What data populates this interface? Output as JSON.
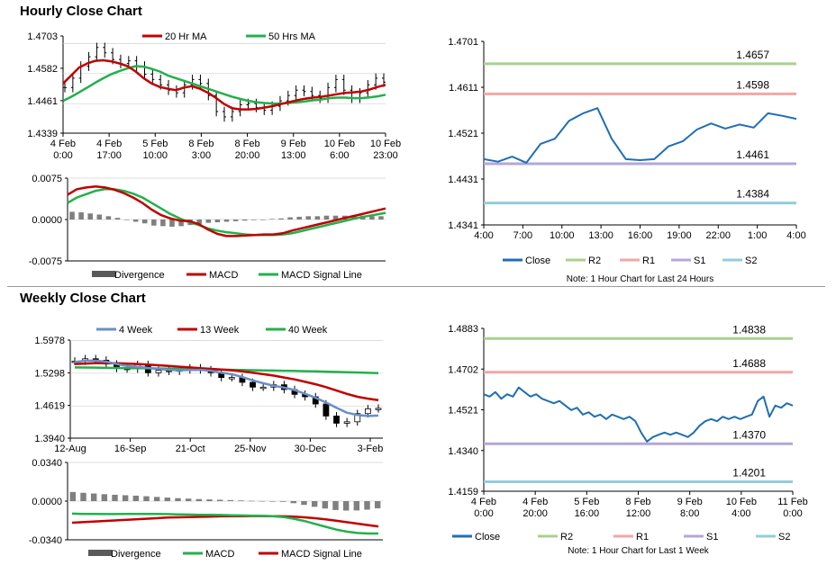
{
  "sections": {
    "hourly_title": "Hourly Close Chart",
    "weekly_title": "Weekly Close Chart"
  },
  "colors": {
    "price": "#000000",
    "ma_short": "#c00000",
    "ma_long": "#22b14c",
    "ma_4week": "#6a8fc8",
    "close": "#1f6fb3",
    "r2": "#a9d18e",
    "r1": "#f4a6a6",
    "s1": "#b4a7d6",
    "s2": "#92cddc",
    "divergence": "#7f7f7f"
  },
  "chart_data": [
    {
      "id": "hourly_price",
      "type": "line",
      "legend": [
        "20 Hr MA",
        "50 Hrs MA"
      ],
      "yticks": [
        "1.4703",
        "1.4582",
        "1.4461",
        "1.4339"
      ],
      "ylim": [
        1.4339,
        1.4703
      ],
      "xticks": [
        [
          "4 Feb",
          "0:00"
        ],
        [
          "4 Feb",
          "17:00"
        ],
        [
          "5 Feb",
          "10:00"
        ],
        [
          "8 Feb",
          "3:00"
        ],
        [
          "8 Feb",
          "20:00"
        ],
        [
          "9 Feb",
          "13:00"
        ],
        [
          "10 Feb",
          "6:00"
        ],
        [
          "10 Feb",
          "23:00"
        ]
      ],
      "price": [
        1.451,
        1.4545,
        1.459,
        1.4625,
        1.466,
        1.464,
        1.4615,
        1.46,
        1.461,
        1.459,
        1.456,
        1.454,
        1.452,
        1.45,
        1.449,
        1.452,
        1.454,
        1.4525,
        1.448,
        1.442,
        1.44,
        1.442,
        1.4445,
        1.445,
        1.4435,
        1.4425,
        1.444,
        1.446,
        1.448,
        1.45,
        1.4495,
        1.448,
        1.447,
        1.451,
        1.454,
        1.45,
        1.447,
        1.449,
        1.452,
        1.4545,
        1.453
      ],
      "ma_20": [
        1.4525,
        1.4555,
        1.4585,
        1.46,
        1.461,
        1.4612,
        1.4608,
        1.46,
        1.459,
        1.457,
        1.4545,
        1.4525,
        1.4512,
        1.4505,
        1.45,
        1.451,
        1.4515,
        1.4505,
        1.449,
        1.447,
        1.4448,
        1.4432,
        1.4428,
        1.4428,
        1.443,
        1.4435,
        1.444,
        1.4448,
        1.4455,
        1.4462,
        1.4468,
        1.4472,
        1.4475,
        1.448,
        1.4485,
        1.449,
        1.4492,
        1.4495,
        1.4502,
        1.4512,
        1.452
      ],
      "ma_50": [
        1.446,
        1.4475,
        1.4492,
        1.451,
        1.4528,
        1.4545,
        1.456,
        1.4572,
        1.4582,
        1.459,
        1.4588,
        1.458,
        1.457,
        1.4555,
        1.4545,
        1.4535,
        1.4525,
        1.4515,
        1.4505,
        1.4495,
        1.4485,
        1.4475,
        1.4467,
        1.446,
        1.4455,
        1.4452,
        1.445,
        1.445,
        1.4452,
        1.4455,
        1.4458,
        1.4462,
        1.4465,
        1.447,
        1.4472,
        1.4472,
        1.447,
        1.447,
        1.4473,
        1.4477,
        1.4483
      ]
    },
    {
      "id": "hourly_macd",
      "type": "line",
      "legend": [
        "Divergence",
        "MACD",
        "MACD Signal Line"
      ],
      "yticks": [
        "0.0075",
        "0.0000",
        "-0.0075"
      ],
      "ylim": [
        -0.0075,
        0.0075
      ],
      "macd": [
        0.0045,
        0.0055,
        0.0058,
        0.006,
        0.0058,
        0.0054,
        0.0048,
        0.004,
        0.003,
        0.0018,
        0.0008,
        0.0002,
        -0.0002,
        -0.0003,
        -0.0008,
        -0.0018,
        -0.0026,
        -0.003,
        -0.003,
        -0.0029,
        -0.0028,
        -0.0027,
        -0.0027,
        -0.0025,
        -0.002,
        -0.0016,
        -0.0012,
        -0.0008,
        -0.0004,
        0.0,
        0.0004,
        0.0008,
        0.0012,
        0.0016,
        0.002
      ],
      "signal": [
        0.003,
        0.004,
        0.0046,
        0.0052,
        0.0055,
        0.0055,
        0.0052,
        0.0047,
        0.004,
        0.003,
        0.002,
        0.001,
        0.0002,
        -0.0005,
        -0.001,
        -0.0016,
        -0.002,
        -0.0023,
        -0.0025,
        -0.0027,
        -0.0028,
        -0.0028,
        -0.0028,
        -0.0027,
        -0.0025,
        -0.0021,
        -0.0017,
        -0.0013,
        -0.0009,
        -0.0005,
        -0.0001,
        0.0003,
        0.0006,
        0.0009,
        0.0012
      ],
      "divergence": [
        0.0014,
        0.0013,
        0.0011,
        0.0009,
        0.0006,
        0.0003,
        0.0,
        -0.0004,
        -0.0007,
        -0.0011,
        -0.0012,
        -0.0013,
        -0.0012,
        -0.001,
        -0.0008,
        -0.0006,
        -0.0005,
        -0.0004,
        -0.0003,
        -0.0002,
        -0.0001,
        0.0,
        0.0001,
        0.0002,
        0.0004,
        0.0005,
        0.0006,
        0.0006,
        0.0007,
        0.0007,
        0.0007,
        0.0007,
        0.0007,
        0.0006,
        0.0006
      ]
    },
    {
      "id": "hourly_levels",
      "type": "line",
      "legend": [
        "Close",
        "R2",
        "R1",
        "S1",
        "S2"
      ],
      "yticks": [
        "1.4701",
        "1.4611",
        "1.4521",
        "1.4431",
        "1.4341"
      ],
      "ylim": [
        1.4341,
        1.4701
      ],
      "xticks": [
        "4:00",
        "7:00",
        "10:00",
        "13:00",
        "16:00",
        "19:00",
        "22:00",
        "1:00",
        "4:00"
      ],
      "close": [
        1.447,
        1.4465,
        1.4475,
        1.4463,
        1.45,
        1.451,
        1.4545,
        1.456,
        1.457,
        1.451,
        1.447,
        1.4468,
        1.447,
        1.4495,
        1.4505,
        1.4528,
        1.454,
        1.453,
        1.4538,
        1.4532,
        1.456,
        1.4555,
        1.4549
      ],
      "levels": {
        "R2": 1.4657,
        "R1": 1.4598,
        "S1": 1.4461,
        "S2": 1.4384
      },
      "level_labels": {
        "R2": "1.4657",
        "R1": "1.4598",
        "S1": "1.4461",
        "S2": "1.4384"
      },
      "note": "Note: 1 Hour Chart for Last 24 Hours"
    },
    {
      "id": "weekly_price",
      "type": "line",
      "legend": [
        "4 Week",
        "13 Week",
        "40 Week"
      ],
      "yticks": [
        "1.5978",
        "1.5298",
        "1.4619",
        "1.3940"
      ],
      "ylim": [
        1.394,
        1.5978
      ],
      "xticks": [
        "12-Aug",
        "16-Sep",
        "21-Oct",
        "25-Nov",
        "30-Dec",
        "3-Feb"
      ],
      "price": [
        1.554,
        1.559,
        1.556,
        1.548,
        1.539,
        1.538,
        1.547,
        1.53,
        1.535,
        1.533,
        1.536,
        1.54,
        1.536,
        1.53,
        1.52,
        1.52,
        1.51,
        1.5,
        1.5,
        1.505,
        1.495,
        1.485,
        1.48,
        1.465,
        1.44,
        1.425,
        1.428,
        1.445,
        1.455,
        1.456
      ],
      "ma_4": [
        1.552,
        1.555,
        1.555,
        1.553,
        1.548,
        1.544,
        1.542,
        1.54,
        1.538,
        1.536,
        1.535,
        1.536,
        1.536,
        1.534,
        1.53,
        1.527,
        1.521,
        1.514,
        1.508,
        1.503,
        1.499,
        1.494,
        1.486,
        1.478,
        1.468,
        1.457,
        1.447,
        1.442,
        1.44,
        1.441
      ],
      "ma_13": [
        1.548,
        1.549,
        1.55,
        1.55,
        1.5495,
        1.549,
        1.548,
        1.547,
        1.5455,
        1.544,
        1.5425,
        1.541,
        1.5395,
        1.538,
        1.5365,
        1.535,
        1.533,
        1.53,
        1.527,
        1.524,
        1.52,
        1.516,
        1.511,
        1.506,
        1.5,
        1.493,
        1.486,
        1.48,
        1.476,
        1.473
      ],
      "ma_40": [
        1.541,
        1.5408,
        1.5405,
        1.54,
        1.5398,
        1.5395,
        1.5392,
        1.539,
        1.5387,
        1.5384,
        1.538,
        1.5376,
        1.5372,
        1.5368,
        1.5364,
        1.536,
        1.5356,
        1.5352,
        1.5348,
        1.5344,
        1.534,
        1.5336,
        1.5332,
        1.5328,
        1.5322,
        1.5316,
        1.531,
        1.5304,
        1.5298,
        1.5292
      ]
    },
    {
      "id": "weekly_macd",
      "type": "line",
      "legend": [
        "Divergence",
        "MACD",
        "MACD Signal Line"
      ],
      "yticks": [
        "0.0340",
        "0.0000",
        "-0.0340"
      ],
      "ylim": [
        -0.034,
        0.034
      ],
      "macd": [
        -0.011,
        -0.0112,
        -0.0113,
        -0.0114,
        -0.0114,
        -0.0113,
        -0.0112,
        -0.0112,
        -0.0113,
        -0.0114,
        -0.0116,
        -0.0118,
        -0.012,
        -0.0121,
        -0.0122,
        -0.0124,
        -0.0126,
        -0.0128,
        -0.013,
        -0.0132,
        -0.014,
        -0.0155,
        -0.0175,
        -0.02,
        -0.0225,
        -0.025,
        -0.0268,
        -0.028,
        -0.0285,
        -0.0285
      ],
      "signal": [
        -0.019,
        -0.0185,
        -0.018,
        -0.0175,
        -0.017,
        -0.0165,
        -0.016,
        -0.0155,
        -0.015,
        -0.0145,
        -0.0142,
        -0.014,
        -0.0138,
        -0.0136,
        -0.0134,
        -0.0133,
        -0.0132,
        -0.0131,
        -0.0131,
        -0.0132,
        -0.0134,
        -0.0137,
        -0.0142,
        -0.015,
        -0.016,
        -0.0172,
        -0.0185,
        -0.0198,
        -0.021,
        -0.0222
      ],
      "divergence": [
        0.008,
        0.0073,
        0.0067,
        0.0061,
        0.0056,
        0.0052,
        0.0048,
        0.0043,
        0.0037,
        0.0031,
        0.0026,
        0.0022,
        0.0018,
        0.0015,
        0.0012,
        0.0009,
        0.0006,
        0.0003,
        0.0001,
        0.0,
        -0.0006,
        -0.0018,
        -0.0033,
        -0.005,
        -0.0065,
        -0.0078,
        -0.0083,
        -0.0082,
        -0.0075,
        -0.0063
      ]
    },
    {
      "id": "weekly_levels",
      "type": "line",
      "legend": [
        "Close",
        "R2",
        "R1",
        "S1",
        "S2"
      ],
      "yticks": [
        "1.4883",
        "1.4702",
        "1.4521",
        "1.4340",
        "1.4159"
      ],
      "ylim": [
        1.4159,
        1.4883
      ],
      "xticks": [
        [
          "4 Feb",
          "0:00"
        ],
        [
          "4 Feb",
          "20:00"
        ],
        [
          "5 Feb",
          "16:00"
        ],
        [
          "8 Feb",
          "12:00"
        ],
        [
          "9 Feb",
          "8:00"
        ],
        [
          "10 Feb",
          "4:00"
        ],
        [
          "11 Feb",
          "0:00"
        ]
      ],
      "close": [
        1.459,
        1.458,
        1.46,
        1.457,
        1.459,
        1.458,
        1.462,
        1.46,
        1.458,
        1.459,
        1.457,
        1.456,
        1.455,
        1.456,
        1.454,
        1.452,
        1.453,
        1.45,
        1.451,
        1.449,
        1.45,
        1.448,
        1.45,
        1.449,
        1.448,
        1.449,
        1.447,
        1.442,
        1.438,
        1.44,
        1.441,
        1.442,
        1.441,
        1.442,
        1.441,
        1.44,
        1.442,
        1.445,
        1.447,
        1.448,
        1.447,
        1.449,
        1.448,
        1.449,
        1.448,
        1.449,
        1.45,
        1.456,
        1.458,
        1.449,
        1.454,
        1.453,
        1.455,
        1.454
      ],
      "levels": {
        "R2": 1.4838,
        "R1": 1.4688,
        "S1": 1.437,
        "S2": 1.4201
      },
      "level_labels": {
        "R2": "1.4838",
        "R1": "1.4688",
        "S1": "1.4370",
        "S2": "1.4201"
      },
      "note": "Note: 1 Hour Chart for Last 1 Week"
    }
  ]
}
